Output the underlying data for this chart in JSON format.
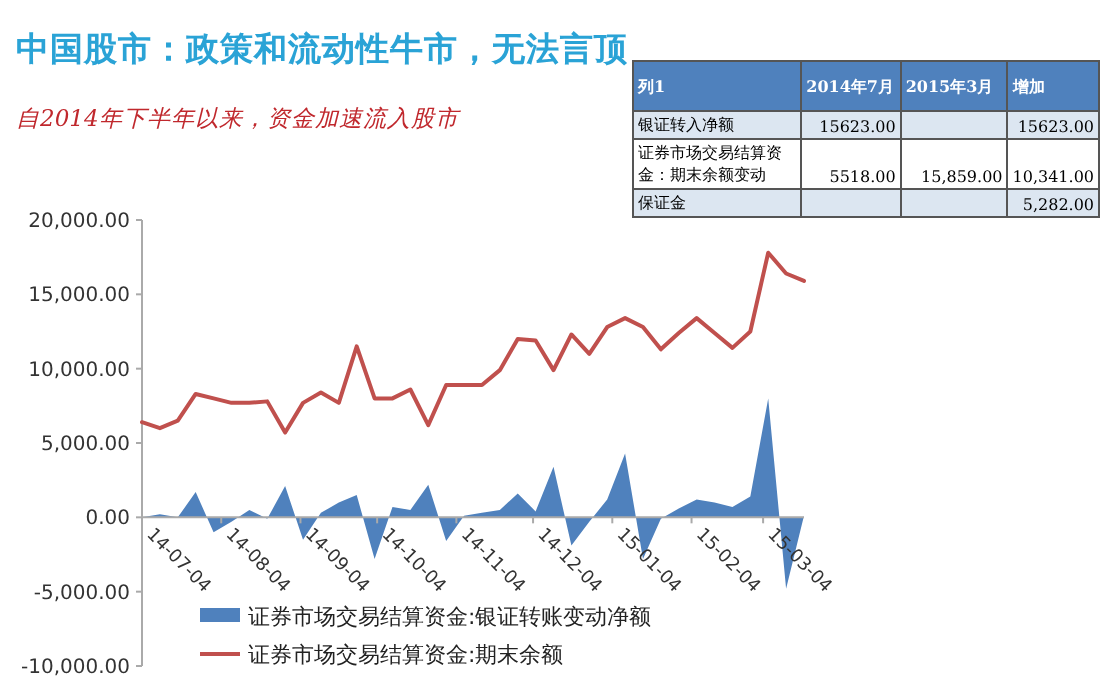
{
  "chart_data": [
    {
      "type": "line",
      "title": "中国股市：政策和流动性牛市，无法言顶",
      "subtitle": "自2014年下半年以来，资金加速流入股市",
      "x": [
        "2014-07-04",
        "2014-07-11",
        "2014-07-18",
        "2014-07-25",
        "2014-08-01",
        "2014-08-08",
        "2014-08-15",
        "2014-08-22",
        "2014-08-29",
        "2014-09-05",
        "2014-09-12",
        "2014-09-19",
        "2014-09-26",
        "2014-10-03",
        "2014-10-10",
        "2014-10-17",
        "2014-10-24",
        "2014-10-31",
        "2014-11-07",
        "2014-11-14",
        "2014-11-21",
        "2014-11-28",
        "2014-12-05",
        "2014-12-12",
        "2014-12-19",
        "2014-12-26",
        "2015-01-02",
        "2015-01-09",
        "2015-01-16",
        "2015-01-23",
        "2015-01-30",
        "2015-02-06",
        "2015-02-13",
        "2015-02-20",
        "2015-02-27",
        "2015-03-06",
        "2015-03-13",
        "2015-03-20"
      ],
      "series": [
        {
          "name": "证券市场交易结算资金:银证转账变动净额",
          "type": "area",
          "color": "#4f81bd",
          "values": [
            0,
            200,
            0,
            1700,
            -1000,
            -300,
            500,
            -100,
            2100,
            -1500,
            300,
            1000,
            1500,
            -2800,
            700,
            500,
            2200,
            -1600,
            100,
            300,
            500,
            1600,
            400,
            3400,
            -1900,
            -300,
            1200,
            4300,
            -2800,
            -100,
            600,
            1200,
            1000,
            700,
            1400,
            8000,
            -4800,
            100
          ]
        },
        {
          "name": "证券市场交易结算资金:期末余额",
          "type": "line",
          "color": "#c0504d",
          "values": [
            6400,
            6000,
            6500,
            8300,
            8000,
            7700,
            7700,
            7800,
            5700,
            7700,
            8400,
            7700,
            11500,
            8000,
            8000,
            8600,
            6200,
            8900,
            8900,
            8900,
            9900,
            12000,
            11900,
            9900,
            12300,
            11000,
            12800,
            13400,
            12800,
            11300,
            12400,
            13400,
            12400,
            11400,
            12500,
            17800,
            16400,
            15900
          ]
        }
      ],
      "xlim": [
        "2014-07-04",
        "2015-03-20"
      ],
      "xticks": [
        {
          "value": "2014-07-04",
          "label": "14-07-04"
        },
        {
          "value": "2014-08-04",
          "label": "14-08-04"
        },
        {
          "value": "2014-09-04",
          "label": "14-09-04"
        },
        {
          "value": "2014-10-04",
          "label": "14-10-04"
        },
        {
          "value": "2014-11-04",
          "label": "14-11-04"
        },
        {
          "value": "2014-12-04",
          "label": "14-12-04"
        },
        {
          "value": "2015-01-04",
          "label": "15-01-04"
        },
        {
          "value": "2015-02-04",
          "label": "15-02-04"
        },
        {
          "value": "2015-03-04",
          "label": "15-03-04"
        }
      ],
      "ylim": [
        -10000,
        20000
      ],
      "yticks": [
        {
          "value": -10000,
          "label": "-10,000.00"
        },
        {
          "value": -5000,
          "label": "-5,000.00"
        },
        {
          "value": 0,
          "label": "0.00"
        },
        {
          "value": 5000,
          "label": "5,000.00"
        },
        {
          "value": 10000,
          "label": "10,000.00"
        },
        {
          "value": 15000,
          "label": "15,000.00"
        },
        {
          "value": 20000,
          "label": "20,000.00"
        }
      ],
      "legend": "bottom"
    },
    {
      "type": "other",
      "annotations": [
        "列1",
        "2014年7月",
        "2015年3月",
        "增加",
        "银证转入净额",
        "15623.00",
        "15623.00",
        "证券市场交易结算资金：期末余额变动",
        "5518.00",
        "15,859.00",
        "10,341.00",
        "保证金",
        "5,282.00"
      ]
    }
  ]
}
